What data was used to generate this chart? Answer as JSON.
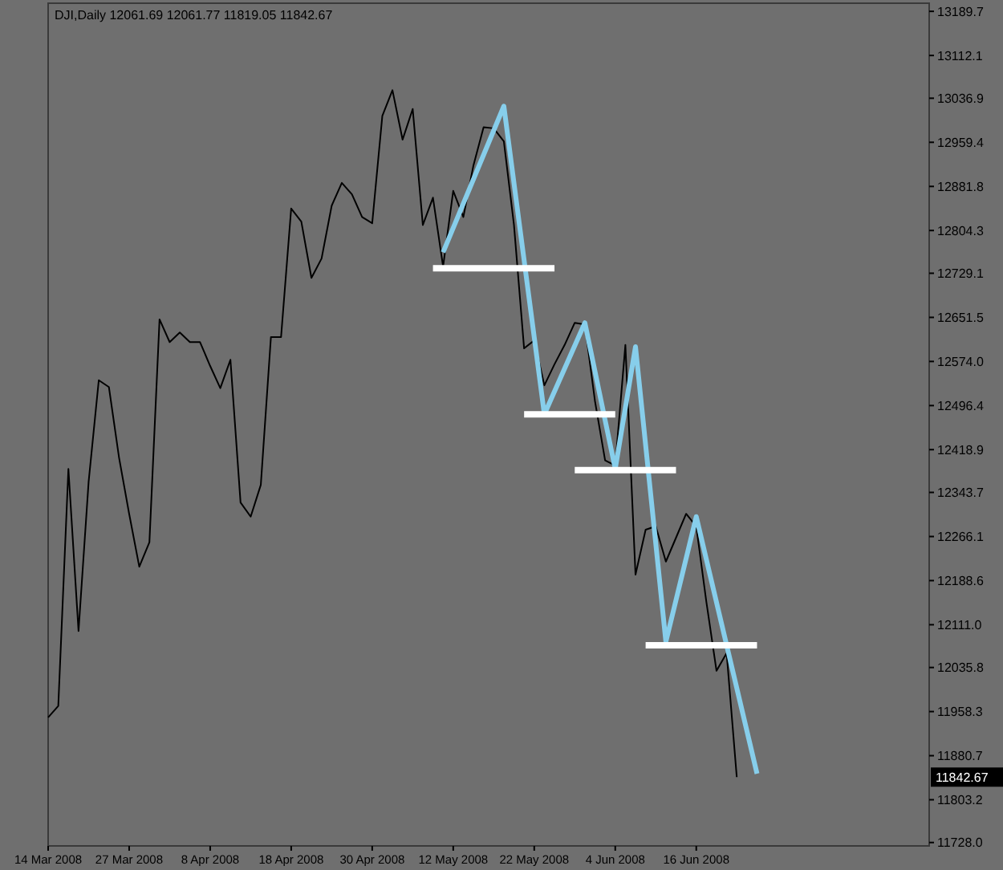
{
  "chart_data": {
    "type": "line",
    "title": "DJI,Daily 12061.69 12061.77 11819.05 11842.67",
    "categories": [
      "14 Mar 2008",
      null,
      null,
      null,
      null,
      null,
      null,
      null,
      "27 Mar 2008",
      null,
      null,
      null,
      null,
      null,
      null,
      null,
      "8 Apr 2008",
      null,
      null,
      null,
      null,
      null,
      null,
      null,
      "18 Apr 2008",
      null,
      null,
      null,
      null,
      null,
      null,
      null,
      "30 Apr 2008",
      null,
      null,
      null,
      null,
      null,
      null,
      null,
      "12 May 2008",
      null,
      null,
      null,
      null,
      null,
      null,
      null,
      "22 May 2008",
      null,
      null,
      null,
      null,
      null,
      null,
      null,
      "4 Jun 2008",
      null,
      null,
      null,
      null,
      null,
      null,
      null,
      "16 Jun 2008",
      null,
      null,
      null,
      null,
      null,
      null,
      null,
      null,
      null,
      null,
      null,
      null,
      null,
      null,
      null,
      null,
      null,
      null,
      null,
      null,
      null,
      null,
      null
    ],
    "ylim": [
      11722,
      13204
    ],
    "yticks": [
      13189.7,
      13112.1,
      13036.9,
      12959.4,
      12881.8,
      12804.3,
      12729.1,
      12651.5,
      {
        "value": 12574,
        "label": "12574.0"
      },
      12496.4,
      12418.9,
      12343.7,
      12266.1,
      12188.6,
      {
        "value": 12111,
        "label": "12111.0"
      },
      12035.8,
      11958.3,
      11880.7,
      11803.2,
      {
        "value": 11728,
        "label": "11728.0"
      }
    ],
    "grid": false,
    "marker": "none",
    "line_style": "solid",
    "series": [
      {
        "color": "#000000",
        "values": [
          11948,
          11968,
          12385,
          12100,
          12363,
          12541,
          12529,
          12405,
          12306,
          12213,
          12256,
          12648,
          12608,
          12625,
          12608,
          12608,
          12566,
          12527,
          12577,
          12326,
          12301,
          12357,
          12617,
          12617,
          12843,
          12820,
          12721,
          12755,
          12848,
          12888,
          12868,
          12828,
          12817,
          13006,
          13051,
          12964,
          13018,
          12814,
          12862,
          12741,
          12874,
          12828,
          12919,
          12986,
          12984,
          12961,
          12814,
          12597,
          12611,
          12532,
          12569,
          12603,
          12642,
          12639,
          12504,
          12400,
          12391,
          12603,
          12199,
          12278,
          12284,
          12222,
          12264,
          12306,
          12284,
          12151,
          12030,
          12061,
          11843,
          null,
          null,
          null,
          null,
          null,
          null,
          null,
          null,
          null,
          null,
          null,
          null,
          null,
          null,
          null,
          null,
          null,
          null,
          null
        ]
      },
      {
        "color": "#87ceeb",
        "values": [
          null,
          null,
          null,
          null,
          null,
          null,
          null,
          null,
          null,
          null,
          null,
          null,
          null,
          null,
          null,
          null,
          null,
          null,
          null,
          null,
          null,
          null,
          null,
          null,
          null,
          null,
          null,
          null,
          null,
          null,
          null,
          null,
          null,
          null,
          null,
          null,
          null,
          null,
          null,
          12766,
          null,
          null,
          null,
          null,
          null,
          13023,
          null,
          null,
          null,
          12481,
          null,
          null,
          null,
          12642,
          null,
          null,
          12385,
          null,
          12600,
          null,
          null,
          12081,
          null,
          null,
          12301,
          null,
          null,
          null,
          null,
          null,
          11849,
          null,
          null,
          null,
          null,
          null,
          null,
          null,
          null,
          null,
          null,
          null,
          null,
          null,
          null,
          null,
          null,
          null
        ]
      },
      {
        "color": "#ffffff",
        "values": [
          null,
          null,
          null,
          null,
          null,
          null,
          null,
          null,
          null,
          null,
          null,
          null,
          null,
          null,
          null,
          null,
          null,
          null,
          null,
          null,
          null,
          null,
          null,
          null,
          null,
          null,
          null,
          null,
          null,
          null,
          null,
          null,
          null,
          null,
          null,
          null,
          null,
          null,
          12738,
          null,
          null,
          null,
          null,
          null,
          null,
          null,
          null,
          null,
          null,
          null,
          12738,
          null,
          null,
          null,
          null,
          null,
          null,
          null,
          null,
          null,
          null,
          null,
          null,
          null,
          null,
          null,
          null,
          null,
          null,
          null,
          null,
          null,
          null,
          null,
          null,
          null,
          null,
          null,
          null,
          null,
          null,
          null,
          null,
          null,
          null,
          null,
          null,
          null
        ]
      },
      {
        "color": "#ffffff",
        "values": [
          null,
          null,
          null,
          null,
          null,
          null,
          null,
          null,
          null,
          null,
          null,
          null,
          null,
          null,
          null,
          null,
          null,
          null,
          null,
          null,
          null,
          null,
          null,
          null,
          null,
          null,
          null,
          null,
          null,
          null,
          null,
          null,
          null,
          null,
          null,
          null,
          null,
          null,
          null,
          null,
          null,
          null,
          null,
          null,
          null,
          null,
          null,
          12481,
          null,
          null,
          null,
          null,
          null,
          null,
          null,
          null,
          12481,
          null,
          null,
          null,
          null,
          null,
          null,
          null,
          null,
          null,
          null,
          null,
          null,
          null,
          null,
          null,
          null,
          null,
          null,
          null,
          null,
          null,
          null,
          null,
          null,
          null,
          null,
          null,
          null,
          null,
          null,
          null
        ]
      },
      {
        "color": "#ffffff",
        "values": [
          null,
          null,
          null,
          null,
          null,
          null,
          null,
          null,
          null,
          null,
          null,
          null,
          null,
          null,
          null,
          null,
          null,
          null,
          null,
          null,
          null,
          null,
          null,
          null,
          null,
          null,
          null,
          null,
          null,
          null,
          null,
          null,
          null,
          null,
          null,
          null,
          null,
          null,
          null,
          null,
          null,
          null,
          null,
          null,
          null,
          null,
          null,
          null,
          null,
          null,
          null,
          null,
          12383,
          null,
          null,
          null,
          null,
          null,
          null,
          null,
          null,
          null,
          12383,
          null,
          null,
          null,
          null,
          null,
          null,
          null,
          null,
          null,
          null,
          null,
          null,
          null,
          null,
          null,
          null,
          null,
          null,
          null,
          null,
          null,
          null,
          null,
          null,
          null
        ]
      },
      {
        "color": "#ffffff",
        "values": [
          null,
          null,
          null,
          null,
          null,
          null,
          null,
          null,
          null,
          null,
          null,
          null,
          null,
          null,
          null,
          null,
          null,
          null,
          null,
          null,
          null,
          null,
          null,
          null,
          null,
          null,
          null,
          null,
          null,
          null,
          null,
          null,
          null,
          null,
          null,
          null,
          null,
          null,
          null,
          null,
          null,
          null,
          null,
          null,
          null,
          null,
          null,
          null,
          null,
          null,
          null,
          null,
          null,
          null,
          null,
          null,
          null,
          null,
          null,
          12075,
          null,
          null,
          null,
          null,
          null,
          null,
          null,
          null,
          null,
          null,
          12075,
          null,
          null,
          null,
          null,
          null,
          null,
          null,
          null,
          null,
          null,
          null,
          null,
          null,
          null,
          null,
          null,
          null
        ]
      }
    ],
    "annotations": [
      "11842.67"
    ]
  }
}
